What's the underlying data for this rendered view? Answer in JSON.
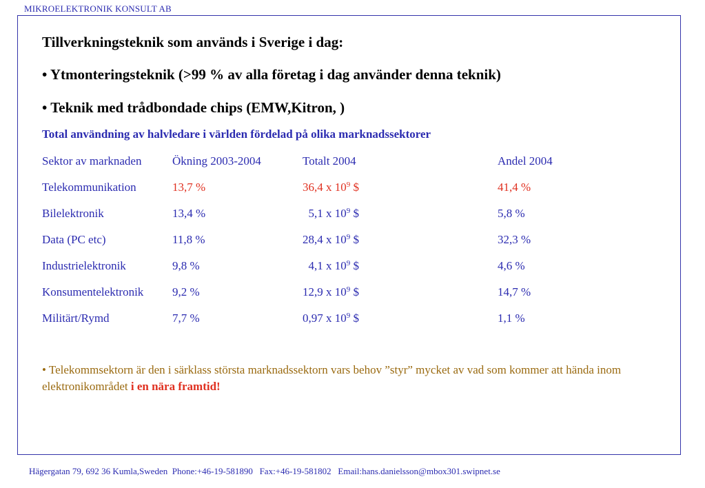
{
  "header": {
    "org": "MIKROELEKTRONIK KONSULT AB"
  },
  "content": {
    "title": "Tillverkningsteknik som används i Sverige i dag:",
    "bullets": [
      "• Ytmonteringsteknik (>99 % av alla företag i dag använder denna teknik)",
      "• Teknik med trådbondade chips (EMW,Kitron, )"
    ],
    "subtitle": "Total användning av halvledare i världen fördelad på olika marknadssektorer"
  },
  "table": {
    "headers": [
      "Sektor av marknaden",
      "Ökning 2003-2004",
      "Totalt 2004",
      "Andel  2004"
    ],
    "rows": [
      {
        "sector": "Telekommunikation",
        "growth": "13,7 %",
        "total_pre": "36,4 x 10",
        "total_exp": "9",
        "total_post": " $",
        "share": "41,4 %"
      },
      {
        "sector": "Bilelektronik",
        "growth": "13,4 %",
        "total_pre": "  5,1 x 10",
        "total_exp": "9",
        "total_post": " $",
        "share": "5,8 %"
      },
      {
        "sector": "Data (PC etc)",
        "growth": "11,8 %",
        "total_pre": "28,4 x 10",
        "total_exp": "9",
        "total_post": " $",
        "share": "32,3 %"
      },
      {
        "sector": "Industrielektronik",
        "growth": "9,8 %",
        "total_pre": "  4,1 x 10",
        "total_exp": "9",
        "total_post": " $",
        "share": "4,6 %"
      },
      {
        "sector": "Konsumentelektronik",
        "growth": "9,2 %",
        "total_pre": "12,9 x 10",
        "total_exp": "9",
        "total_post": " $",
        "share": "14,7 %"
      },
      {
        "sector": "Militärt/Rymd",
        "growth": "7,7 %",
        "total_pre": "0,97 x 10",
        "total_exp": "9",
        "total_post": " $",
        "share": "1,1 %"
      }
    ]
  },
  "note": {
    "text": "• Telekommsektorn är den i särklass största marknadssektorn vars behov ”styr” mycket av vad som kommer att hända inom elektronikområdet ",
    "highlight": "i en nära framtid!"
  },
  "footer": {
    "text": "Hägergatan 79, 692 36 Kumla,Sweden  Phone:+46-19-581890   Fax:+46-19-581802   Email:hans.danielsson@mbox301.swipnet.se"
  },
  "colors": {
    "blue_text": "#2b2bb0",
    "red_highlight": "#e03020",
    "note_text": "#9a6a10",
    "frame_border": "#3333aa"
  }
}
